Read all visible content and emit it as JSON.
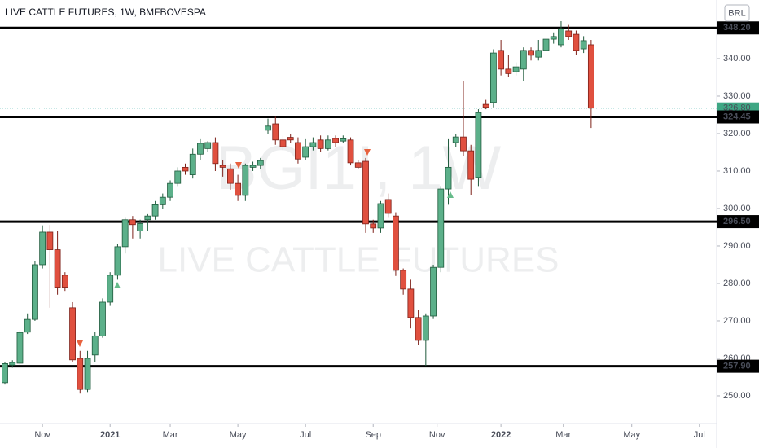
{
  "chart_data": {
    "type": "candlestick",
    "title": "LIVE CATTLE FUTURES, 1W, BMFBOVESPA",
    "watermark": [
      "BGI1!, 1W",
      "LIVE CATTLE FUTURES"
    ],
    "currency": "BRL",
    "up_color": "#5cb08a",
    "down_color": "#e0503f",
    "ylim": [
      242.6,
      355.65
    ],
    "yticks": [
      {
        "value": 250,
        "label": "250.00"
      },
      {
        "value": 260,
        "label": "260.00"
      },
      {
        "value": 270,
        "label": "270.00"
      },
      {
        "value": 280,
        "label": "280.00"
      },
      {
        "value": 290,
        "label": "290.00"
      },
      {
        "value": 300,
        "label": "300.00"
      },
      {
        "value": 310,
        "label": "310.00"
      },
      {
        "value": 320,
        "label": "320.00"
      },
      {
        "value": 330,
        "label": "330.00"
      },
      {
        "value": 340,
        "label": "340.00"
      }
    ],
    "xlim": [
      -0.65,
      94.7
    ],
    "xticks": [
      {
        "value": 5,
        "label": "Nov"
      },
      {
        "value": 14,
        "label": "2021"
      },
      {
        "value": 22,
        "label": "Mar"
      },
      {
        "value": 31,
        "label": "May"
      },
      {
        "value": 40,
        "label": "Jul"
      },
      {
        "value": 49,
        "label": "Sep"
      },
      {
        "value": 57.5,
        "label": "Nov"
      },
      {
        "value": 66,
        "label": "2022"
      },
      {
        "value": 74.3,
        "label": "Mar"
      },
      {
        "value": 83.4,
        "label": "May"
      },
      {
        "value": 92.4,
        "label": "Jul"
      }
    ],
    "open": [
      253.5,
      258.2,
      258.7,
      267,
      270.4,
      285,
      293.7,
      289,
      282.2,
      273.5,
      260,
      251.7,
      260.9,
      266,
      275,
      282.2,
      289.8,
      297,
      294,
      297,
      298,
      301,
      303,
      306.7,
      311,
      309,
      314.5,
      316,
      317.6,
      311.5,
      310.6,
      306.7,
      303.5,
      311,
      311.5,
      320.9,
      322.6,
      318.3,
      319,
      317.6,
      313.7,
      316.5,
      318.3,
      316,
      318.7,
      318,
      318.3,
      312.2,
      312.6,
      295.9,
      294.8,
      302.4,
      298,
      283.5,
      278.5,
      270.9,
      264.8,
      271.3,
      284.3,
      305.2,
      317.6,
      319.1,
      315.4,
      308.3,
      327.8,
      328.3,
      342.2,
      337.2,
      336.5,
      337.2,
      342.2,
      340.4,
      342.2,
      345.2,
      343.7,
      347.4,
      346.5,
      342.6,
      343.7
    ],
    "high": [
      259,
      259.5,
      267.5,
      272,
      286,
      295.5,
      295.6,
      294,
      283,
      275,
      262,
      262,
      267,
      276,
      283,
      290.5,
      297.5,
      298,
      297,
      298.5,
      302,
      304,
      307.5,
      311,
      312,
      316,
      318.5,
      318,
      319,
      313,
      312,
      309,
      312,
      312.5,
      313.5,
      324,
      324.5,
      319.5,
      320,
      319,
      318.5,
      319,
      319.5,
      319.5,
      319.5,
      319.5,
      319,
      313,
      313.5,
      297,
      302,
      304,
      299,
      284,
      281,
      273,
      272,
      285,
      306,
      318.5,
      320,
      334,
      317,
      326.5,
      329,
      342.5,
      345,
      341,
      339,
      343,
      343,
      345,
      346,
      347,
      350,
      349,
      347.5,
      346,
      345
    ],
    "low": [
      253,
      257.5,
      258,
      266.5,
      270,
      284,
      273.5,
      277,
      278,
      259,
      250.6,
      251,
      259,
      265.5,
      274,
      281,
      288,
      292,
      292,
      294,
      297,
      300,
      302,
      306,
      309,
      308,
      313,
      315,
      310,
      308.5,
      305,
      302,
      302,
      310,
      310.5,
      320,
      317,
      315.5,
      317.5,
      312,
      313,
      315.5,
      315,
      315.5,
      316.5,
      317.5,
      311.5,
      310.5,
      293.5,
      293.5,
      293.5,
      297.5,
      282,
      277,
      268,
      263.5,
      258,
      270.5,
      283,
      301,
      316.5,
      314,
      303.5,
      306,
      326.5,
      327,
      335.5,
      335,
      335.5,
      334,
      339.5,
      339.5,
      341,
      344,
      343,
      345,
      341,
      341.5,
      321.5
    ],
    "close": [
      258.6,
      258.9,
      266.9,
      270.4,
      285,
      293.7,
      289,
      279,
      279,
      259.6,
      251.7,
      260,
      266,
      275,
      282.2,
      289.8,
      297,
      295.7,
      296,
      298,
      301,
      303,
      306.7,
      310,
      310,
      314.5,
      317.4,
      317.6,
      312,
      311,
      306.7,
      303.5,
      311.5,
      311.5,
      312.8,
      322,
      318.3,
      316.5,
      318.3,
      313.2,
      316.5,
      317.6,
      316,
      318.3,
      317.6,
      318.6,
      312.2,
      311,
      295.9,
      294.8,
      301.3,
      298.7,
      283.5,
      278.5,
      270.9,
      264.8,
      271.3,
      284.3,
      305.2,
      311,
      319.1,
      315.4,
      307.8,
      325.6,
      327,
      341.5,
      337.2,
      336,
      337.8,
      342.2,
      340.9,
      342.2,
      345.2,
      345.9,
      348,
      345.9,
      342.2,
      344.8,
      326.8
    ],
    "levels": [
      {
        "value": 348.2,
        "label": "348.20"
      },
      {
        "value": 324.45,
        "label": "324.45"
      },
      {
        "value": 296.5,
        "label": "296.50"
      },
      {
        "value": 257.9,
        "label": "257.90"
      }
    ],
    "last_price": {
      "value": 326.8,
      "label": "326.80"
    }
  }
}
